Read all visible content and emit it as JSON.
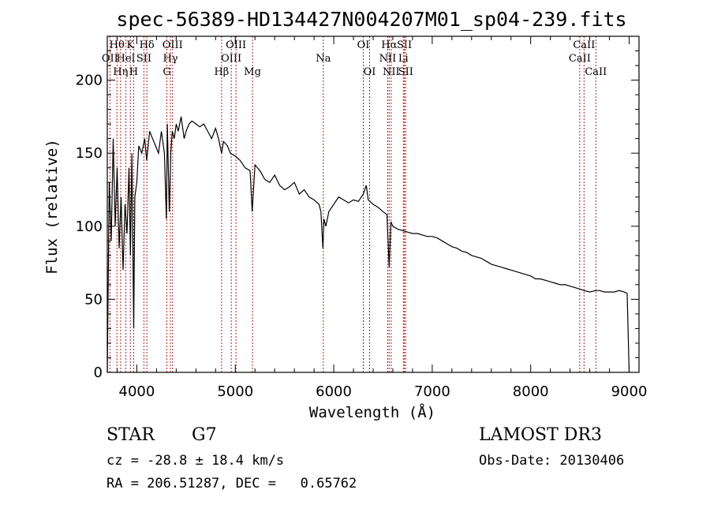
{
  "chart_data": {
    "type": "line",
    "title": "spec-56389-HD134427N004207M01_sp04-239.fits",
    "xlabel": "Wavelength (Å)",
    "ylabel": "Flux (relative)",
    "xlim": [
      3700,
      9100
    ],
    "ylim": [
      0,
      230
    ],
    "xticks": [
      4000,
      5000,
      6000,
      7000,
      8000,
      9000
    ],
    "xtick_labels": [
      "4000",
      "5000",
      "6000",
      "7000",
      "8000",
      "9000"
    ],
    "yticks": [
      0,
      50,
      100,
      150,
      200
    ],
    "ytick_labels": [
      "0",
      "50",
      "100",
      "150",
      "200"
    ],
    "series": [
      {
        "name": "flux",
        "x": [
          3700,
          3720,
          3740,
          3760,
          3780,
          3800,
          3820,
          3840,
          3860,
          3880,
          3900,
          3920,
          3935,
          3950,
          3968,
          3980,
          4000,
          4020,
          4050,
          4080,
          4100,
          4130,
          4160,
          4190,
          4220,
          4250,
          4280,
          4300,
          4310,
          4330,
          4345,
          4360,
          4380,
          4400,
          4420,
          4450,
          4480,
          4500,
          4530,
          4560,
          4600,
          4640,
          4680,
          4720,
          4760,
          4800,
          4830,
          4861,
          4880,
          4920,
          4950,
          5000,
          5050,
          5100,
          5150,
          5172,
          5200,
          5250,
          5300,
          5350,
          5400,
          5450,
          5500,
          5550,
          5600,
          5650,
          5700,
          5750,
          5800,
          5850,
          5870,
          5890,
          5900,
          5920,
          5950,
          6000,
          6050,
          6100,
          6150,
          6200,
          6250,
          6300,
          6330,
          6350,
          6400,
          6450,
          6500,
          6540,
          6563,
          6580,
          6600,
          6650,
          6700,
          6750,
          6800,
          6850,
          6900,
          6950,
          7000,
          7050,
          7100,
          7150,
          7200,
          7250,
          7300,
          7350,
          7400,
          7450,
          7500,
          7550,
          7600,
          7650,
          7700,
          7750,
          7800,
          7850,
          7900,
          7950,
          8000,
          8050,
          8100,
          8150,
          8200,
          8250,
          8300,
          8350,
          8400,
          8450,
          8500,
          8542,
          8600,
          8662,
          8700,
          8750,
          8800,
          8850,
          8900,
          8950,
          8980,
          9000
        ],
        "values": [
          0,
          130,
          90,
          160,
          100,
          140,
          85,
          120,
          70,
          115,
          95,
          140,
          80,
          150,
          30,
          120,
          130,
          155,
          150,
          160,
          145,
          165,
          160,
          155,
          150,
          165,
          150,
          105,
          170,
          110,
          150,
          165,
          160,
          170,
          165,
          175,
          160,
          165,
          170,
          172,
          170,
          168,
          170,
          165,
          160,
          167,
          160,
          150,
          158,
          155,
          150,
          148,
          145,
          140,
          138,
          110,
          142,
          138,
          132,
          130,
          135,
          128,
          125,
          127,
          130,
          122,
          125,
          120,
          118,
          115,
          110,
          85,
          105,
          100,
          110,
          115,
          120,
          118,
          116,
          118,
          117,
          122,
          128,
          118,
          115,
          113,
          110,
          108,
          72,
          103,
          100,
          98,
          97,
          96,
          95,
          95,
          94,
          93,
          93,
          92,
          90,
          88,
          86,
          85,
          83,
          82,
          80,
          79,
          78,
          76,
          74,
          73,
          72,
          71,
          70,
          69,
          68,
          67,
          66,
          64,
          64,
          63,
          62,
          61,
          60,
          60,
          59,
          58,
          57,
          56,
          55,
          56,
          56,
          55,
          55,
          55,
          56,
          55,
          54,
          0
        ]
      }
    ],
    "line_markers": [
      {
        "label": "Hθ",
        "x": 3798,
        "row": 1
      },
      {
        "label": "OII",
        "x": 3727,
        "row": 2
      },
      {
        "label": "Hη",
        "x": 3835,
        "row": 3
      },
      {
        "label": "HeI",
        "x": 3889,
        "row": 2
      },
      {
        "label": "K",
        "x": 3934,
        "row": 1
      },
      {
        "label": "H",
        "x": 3968,
        "row": 3
      },
      {
        "label": "SII",
        "x": 4072,
        "row": 2
      },
      {
        "label": "Hδ",
        "x": 4102,
        "row": 1
      },
      {
        "label": "G",
        "x": 4305,
        "row": 3
      },
      {
        "label": "Hγ",
        "x": 4341,
        "row": 2
      },
      {
        "label": "OIII",
        "x": 4363,
        "row": 1
      },
      {
        "label": "Hβ",
        "x": 4861,
        "row": 3
      },
      {
        "label": "OIII",
        "x": 4959,
        "row": 2
      },
      {
        "label": "OIII",
        "x": 5007,
        "row": 1
      },
      {
        "label": "Mg",
        "x": 5175,
        "row": 3
      },
      {
        "label": "Na",
        "x": 5894,
        "row": 2
      },
      {
        "label": "OI",
        "x": 6300,
        "row": 1
      },
      {
        "label": "OI",
        "x": 6364,
        "row": 3
      },
      {
        "label": "NII",
        "x": 6548,
        "row": 2
      },
      {
        "label": "Hα",
        "x": 6563,
        "row": 1
      },
      {
        "label": "NII",
        "x": 6583,
        "row": 3
      },
      {
        "label": "Li",
        "x": 6707,
        "row": 2
      },
      {
        "label": "SII",
        "x": 6717,
        "row": 1
      },
      {
        "label": "SII",
        "x": 6731,
        "row": 3
      },
      {
        "label": "CaII",
        "x": 8498,
        "row": 2
      },
      {
        "label": "CaII",
        "x": 8542,
        "row": 1
      },
      {
        "label": "CaII",
        "x": 8662,
        "row": 3
      }
    ]
  },
  "info": {
    "object_type": "STAR",
    "subclass": "G7",
    "survey": "LAMOST DR3",
    "cz": "cz = -28.8 ± 18.4 km/s",
    "obs_date": "Obs-Date: 20130406",
    "coords": "RA = 206.51287, DEC =   0.65762"
  },
  "colors": {
    "spectrum": "#000000",
    "line_marker": "#b22222",
    "axis": "#000000"
  }
}
